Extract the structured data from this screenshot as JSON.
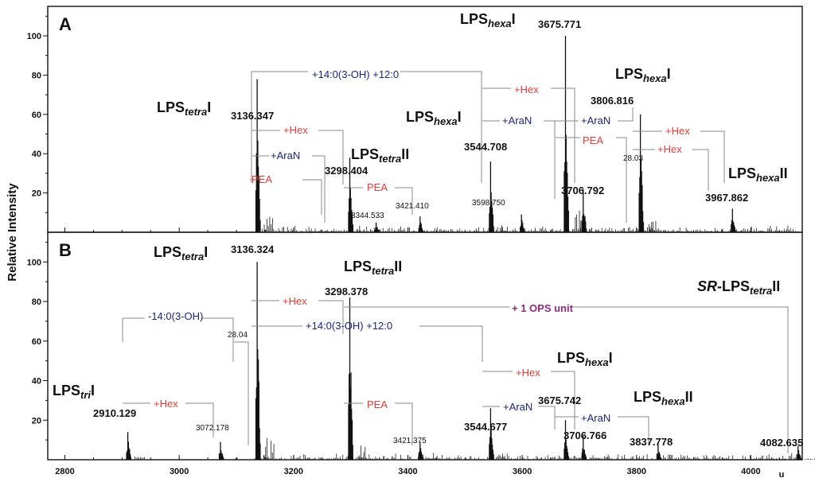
{
  "chart_data": {
    "type": "mass-spectrum",
    "ylabel": "Relative Intensity",
    "x_unit": "u",
    "xlim": [
      2770,
      4090
    ],
    "ylim": [
      0,
      115
    ],
    "x_ticks": [
      2800,
      3000,
      3200,
      3400,
      3600,
      3800,
      4000
    ],
    "y_ticks": [
      20,
      40,
      60,
      80,
      100
    ],
    "panels": [
      {
        "label": "A",
        "peaks": [
          {
            "mz": 3136.347,
            "y": 78,
            "label": "3136.347",
            "bold": true
          },
          {
            "mz": 3298.404,
            "y": 38,
            "label": "3298.404",
            "bold": true
          },
          {
            "mz": 3344.533,
            "y": 5,
            "label": "3344.533",
            "bold": false
          },
          {
            "mz": 3421.41,
            "y": 8,
            "label": "3421.410",
            "bold": false
          },
          {
            "mz": 3544.708,
            "y": 36,
            "label": "3544.708",
            "bold": true
          },
          {
            "mz": 3598.75,
            "y": 9,
            "label": "3598.750",
            "bold": false
          },
          {
            "mz": 3675.771,
            "y": 100,
            "label": "3675.771",
            "bold": true
          },
          {
            "mz": 3706.792,
            "y": 22,
            "label": "3706.792",
            "bold": true
          },
          {
            "mz": 3806.816,
            "y": 60,
            "label": "3806.816",
            "bold": true
          },
          {
            "mz": 3967.862,
            "y": 12,
            "label": "3967.862",
            "bold": true
          }
        ],
        "species": [
          {
            "pre": "LPS",
            "sub": "tetra",
            "post": "I"
          },
          {
            "pre": "LPS",
            "sub": "tetra",
            "post": "II"
          },
          {
            "pre": "LPS",
            "sub": "hexa",
            "post": "I"
          },
          {
            "pre": "LPS",
            "sub": "hexa",
            "post": "I"
          },
          {
            "pre": "LPS",
            "sub": "hexa",
            "post": "I"
          },
          {
            "pre": "LPS",
            "sub": "hexa",
            "post": "II"
          }
        ],
        "annotations": [
          {
            "text": "+14:0(3-OH) +12:0",
            "color": "#1a237e"
          },
          {
            "text": "+Hex",
            "color": "#e53935"
          },
          {
            "text": "+AraN",
            "color": "#1a237e"
          },
          {
            "text": "PEA",
            "color": "#e53935"
          },
          {
            "text": "PEA",
            "color": "#e53935"
          },
          {
            "text": "+Hex",
            "color": "#e53935"
          },
          {
            "text": "+AraN",
            "color": "#1a237e"
          },
          {
            "text": "+AraN",
            "color": "#1a237e"
          },
          {
            "text": "PEA",
            "color": "#e53935"
          },
          {
            "text": "+Hex",
            "color": "#e53935"
          },
          {
            "text": "+Hex",
            "color": "#e53935"
          },
          {
            "text": "28.03",
            "color": "#111111"
          }
        ]
      },
      {
        "label": "B",
        "peaks": [
          {
            "mz": 2910.129,
            "y": 14,
            "label": "2910.129",
            "bold": true
          },
          {
            "mz": 3072.178,
            "y": 9,
            "label": "3072.178",
            "bold": false
          },
          {
            "mz": 3136.324,
            "y": 100,
            "label": "3136.324",
            "bold": true
          },
          {
            "mz": 3298.378,
            "y": 82,
            "label": "3298.378",
            "bold": true
          },
          {
            "mz": 3421.375,
            "y": 9,
            "label": "3421.375",
            "bold": false
          },
          {
            "mz": 3544.677,
            "y": 26,
            "label": "3544.677",
            "bold": true
          },
          {
            "mz": 3675.742,
            "y": 20,
            "label": "3675.742",
            "bold": true
          },
          {
            "mz": 3706.766,
            "y": 12,
            "label": "3706.766",
            "bold": true
          },
          {
            "mz": 3837.778,
            "y": 8,
            "label": "3837.778",
            "bold": true
          },
          {
            "mz": 4082.635,
            "y": 7,
            "label": "4082.635",
            "bold": true
          }
        ],
        "species": [
          {
            "pre": "LPS",
            "sub": "tri",
            "post": "I"
          },
          {
            "pre": "LPS",
            "sub": "tetra",
            "post": "I"
          },
          {
            "pre": "LPS",
            "sub": "tetra",
            "post": "II"
          },
          {
            "pre": "LPS",
            "sub": "hexa",
            "post": "I"
          },
          {
            "pre": "LPS",
            "sub": "hexa",
            "post": "II"
          },
          {
            "pre": "SR-LPS",
            "sub": "tetra",
            "post": "II"
          }
        ],
        "annotations": [
          {
            "text": "-14:0(3-OH)",
            "color": "#1a237e"
          },
          {
            "text": "+Hex",
            "color": "#e53935"
          },
          {
            "text": "+14:0(3-OH) +12:0",
            "color": "#1a237e"
          },
          {
            "text": "+ 1 OPS unit",
            "color": "#8e2a7e"
          },
          {
            "text": "+Hex",
            "color": "#e53935"
          },
          {
            "text": "PEA",
            "color": "#e53935"
          },
          {
            "text": "+Hex",
            "color": "#e53935"
          },
          {
            "text": "+AraN",
            "color": "#1a237e"
          },
          {
            "text": "+AraN",
            "color": "#1a237e"
          },
          {
            "text": "28.04",
            "color": "#111111"
          }
        ]
      }
    ]
  }
}
